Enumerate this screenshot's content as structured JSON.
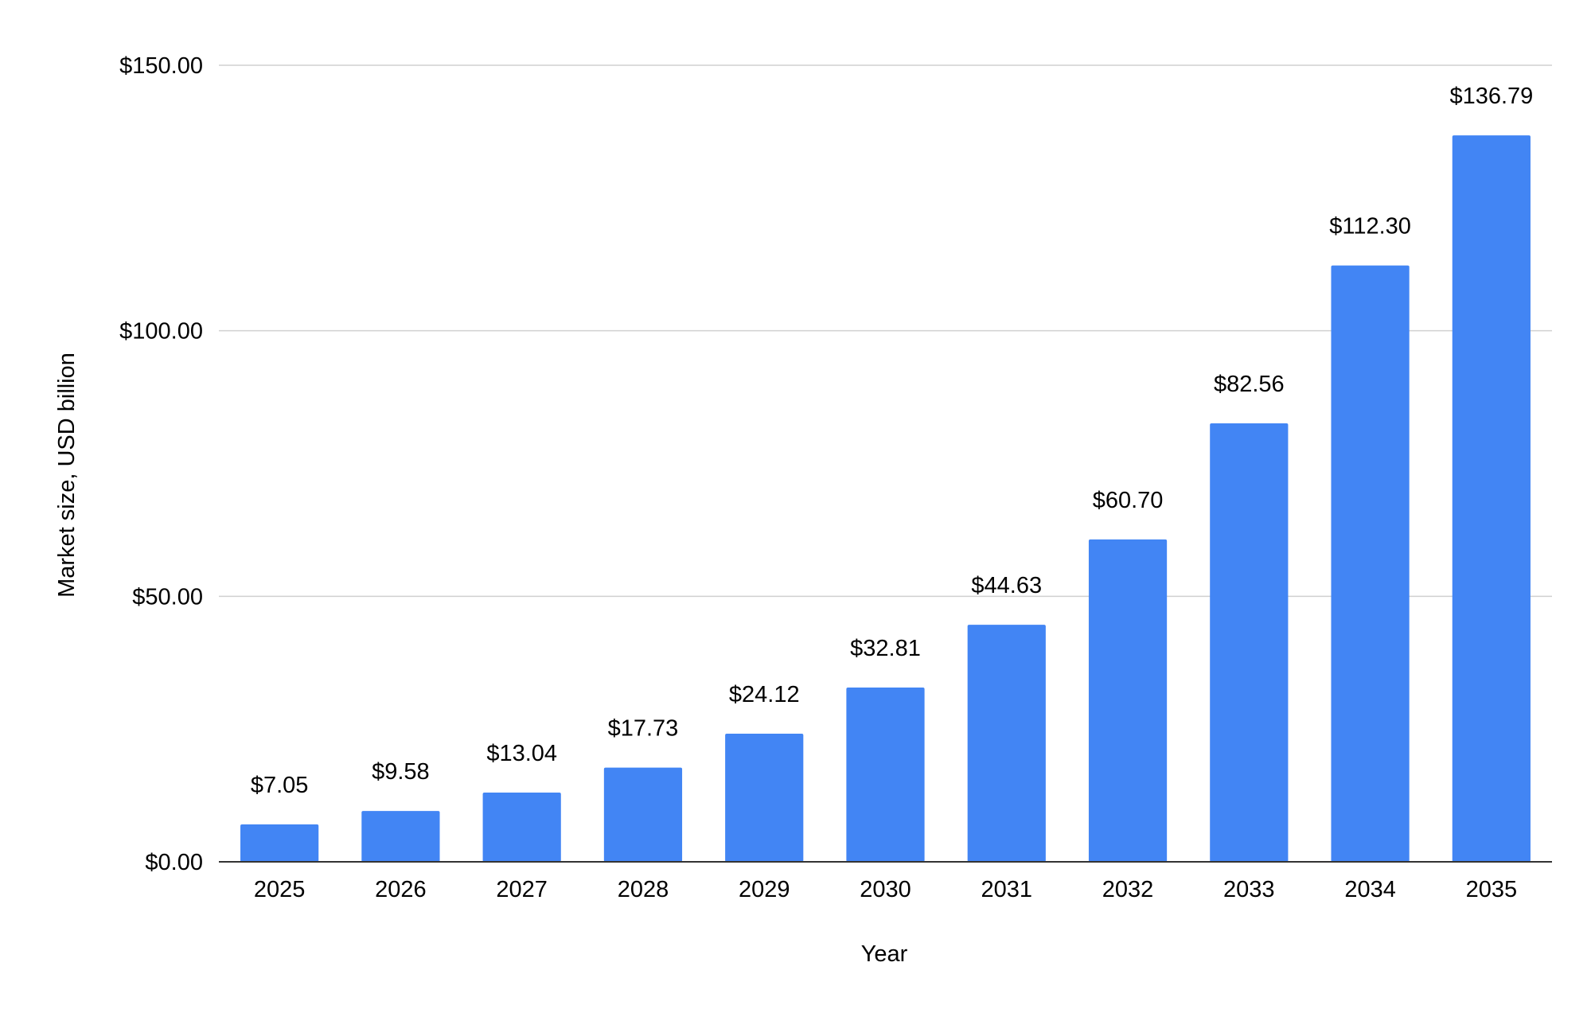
{
  "chart_data": {
    "type": "bar",
    "categories": [
      "2025",
      "2026",
      "2027",
      "2028",
      "2029",
      "2030",
      "2031",
      "2032",
      "2033",
      "2034",
      "2035"
    ],
    "values": [
      7.05,
      9.58,
      13.04,
      17.73,
      24.12,
      32.81,
      44.63,
      60.7,
      82.56,
      112.3,
      136.79
    ],
    "data_labels": [
      "$7.05",
      "$9.58",
      "$13.04",
      "$17.73",
      "$24.12",
      "$32.81",
      "$44.63",
      "$60.70",
      "$82.56",
      "$112.30",
      "$136.79"
    ],
    "xlabel": "Year",
    "ylabel": "Market size, USD billion",
    "ylim": [
      0,
      150
    ],
    "yticks": [
      0,
      50,
      100,
      150
    ],
    "ytick_labels": [
      "$0.00",
      "$50.00",
      "$100.00",
      "$150.00"
    ],
    "grid": true,
    "bar_color": "#4285f4"
  }
}
